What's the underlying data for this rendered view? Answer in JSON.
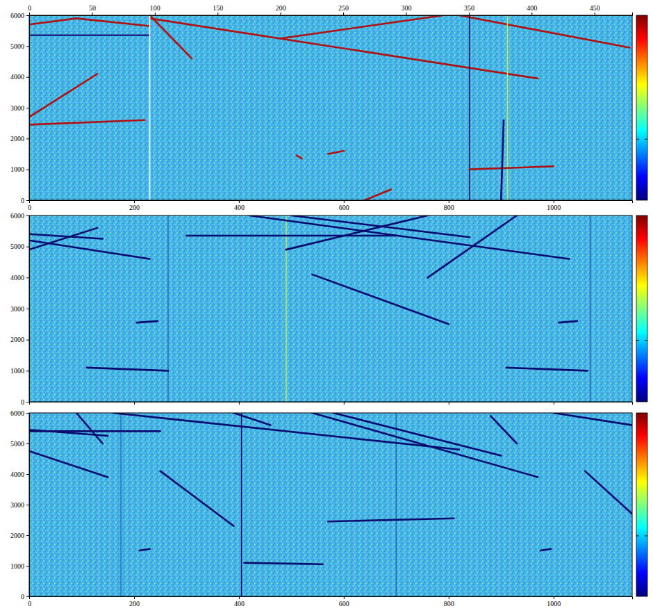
{
  "chart_data": [
    {
      "type": "line",
      "color": "#45b4e6",
      "xlim": [
        0,
        1150
      ],
      "xticks": [
        0,
        200,
        400,
        600,
        800,
        1000
      ],
      "x2lim": [
        0,
        480
      ],
      "x2ticks": [
        0,
        50,
        100,
        150,
        200,
        250,
        300,
        350,
        400,
        450
      ],
      "ylim": [
        0,
        6000
      ],
      "yticks": [
        0,
        1000,
        2000,
        3000,
        4000,
        5000,
        6000
      ],
      "colorbar": {
        "range": [
          0,
          1
        ],
        "ticks": [
          0.33
        ],
        "colors": [
          "#00007f",
          "#0000ff",
          "#007fff",
          "#00ffff",
          "#7fff7f",
          "#ffff00",
          "#ff7f00",
          "#ff0000",
          "#7f0000"
        ]
      },
      "series": [
        {
          "color": "#b01010",
          "x": [
            0,
            90,
            230
          ],
          "values": [
            5700,
            5900,
            5650
          ]
        },
        {
          "color": "#202080",
          "x": [
            0,
            230
          ],
          "values": [
            5350,
            5350
          ]
        },
        {
          "color": "#b01010",
          "x": [
            0,
            130
          ],
          "values": [
            2700,
            4100
          ]
        },
        {
          "color": "#b01010",
          "x": [
            0,
            220
          ],
          "values": [
            2450,
            2600
          ]
        },
        {
          "color": "#b01010",
          "x": [
            230,
            970
          ],
          "values": [
            5900,
            3950
          ]
        },
        {
          "color": "#b01010",
          "x": [
            230,
            310
          ],
          "values": [
            6000,
            4600
          ]
        },
        {
          "color": "#b01010",
          "x": [
            480,
            790
          ],
          "values": [
            5250,
            6000
          ]
        },
        {
          "color": "#b01010",
          "x": [
            820,
            1145
          ],
          "values": [
            6000,
            4950
          ]
        },
        {
          "color": "#ffffff",
          "x": [
            230,
            230
          ],
          "values": [
            0,
            6000
          ]
        },
        {
          "color": "#c8e85a",
          "x": [
            912,
            912
          ],
          "values": [
            0,
            6000
          ]
        },
        {
          "color": "#10106e",
          "x": [
            840,
            840
          ],
          "values": [
            0,
            6000
          ]
        },
        {
          "color": "#b01010",
          "x": [
            840,
            1000
          ],
          "values": [
            1000,
            1100
          ]
        },
        {
          "color": "#0a0a70",
          "x": [
            900,
            905
          ],
          "values": [
            0,
            2600
          ]
        },
        {
          "color": "#b01010",
          "x": [
            640,
            690
          ],
          "values": [
            0,
            350
          ]
        },
        {
          "color": "#b01010",
          "x": [
            570,
            600
          ],
          "values": [
            1500,
            1600
          ]
        },
        {
          "color": "#b01010",
          "x": [
            510,
            520
          ],
          "values": [
            1450,
            1350
          ]
        }
      ]
    },
    {
      "type": "line",
      "color": "#45b4e6",
      "tick_labels": "y",
      "xlim": [
        0,
        1150
      ],
      "xticks": [
        0,
        200,
        400,
        600,
        800,
        1000
      ],
      "ylim": [
        0,
        6000
      ],
      "yticks": [
        0,
        1000,
        2000,
        3000,
        4000,
        5000,
        6000
      ],
      "colorbar": {
        "range": [
          0,
          1
        ],
        "ticks": [
          0.33
        ],
        "colors": [
          "#00007f",
          "#0000ff",
          "#007fff",
          "#00ffff",
          "#7fff7f",
          "#ffff00",
          "#ff7f00",
          "#ff0000",
          "#7f0000"
        ]
      },
      "series": [
        {
          "color": "#2a6fc0",
          "x": [
            265,
            265
          ],
          "values": [
            0,
            6000
          ]
        },
        {
          "color": "#2a6fc0",
          "x": [
            1070,
            1070
          ],
          "values": [
            0,
            6000
          ]
        },
        {
          "color": "#c8e85a",
          "x": [
            490,
            490
          ],
          "values": [
            0,
            6000
          ]
        },
        {
          "color": "#0a0a70",
          "x": [
            0,
            140
          ],
          "values": [
            5400,
            5250
          ]
        },
        {
          "color": "#0a0a70",
          "x": [
            0,
            230
          ],
          "values": [
            5200,
            4600
          ]
        },
        {
          "color": "#0a0a70",
          "x": [
            0,
            130
          ],
          "values": [
            4900,
            5600
          ]
        },
        {
          "color": "#0a0a70",
          "x": [
            300,
            700
          ],
          "values": [
            5350,
            5350
          ]
        },
        {
          "color": "#0a0a70",
          "x": [
            420,
            1030
          ],
          "values": [
            6000,
            4600
          ]
        },
        {
          "color": "#0a0a70",
          "x": [
            500,
            840
          ],
          "values": [
            6000,
            5300
          ]
        },
        {
          "color": "#0a0a70",
          "x": [
            490,
            760
          ],
          "values": [
            4900,
            6000
          ]
        },
        {
          "color": "#0a0a70",
          "x": [
            760,
            930
          ],
          "values": [
            4000,
            6000
          ]
        },
        {
          "color": "#0a0a70",
          "x": [
            540,
            800
          ],
          "values": [
            4100,
            2500
          ]
        },
        {
          "color": "#0a0a70",
          "x": [
            205,
            245
          ],
          "values": [
            2550,
            2600
          ]
        },
        {
          "color": "#0a0a70",
          "x": [
            1010,
            1045
          ],
          "values": [
            2550,
            2600
          ]
        },
        {
          "color": "#0a0a70",
          "x": [
            110,
            265
          ],
          "values": [
            1100,
            1000
          ]
        },
        {
          "color": "#0a0a70",
          "x": [
            910,
            1065
          ],
          "values": [
            1100,
            1000
          ]
        }
      ]
    },
    {
      "type": "line",
      "color": "#45b4e6",
      "xlim": [
        0,
        1150
      ],
      "xticks": [
        0,
        200,
        400,
        600,
        800,
        1000
      ],
      "ylim": [
        0,
        6000
      ],
      "yticks": [
        0,
        1000,
        2000,
        3000,
        4000,
        5000,
        6000
      ],
      "colorbar": {
        "range": [
          0,
          1
        ],
        "ticks": [
          0.33
        ],
        "colors": [
          "#00007f",
          "#0000ff",
          "#007fff",
          "#00ffff",
          "#7fff7f",
          "#ffff00",
          "#ff7f00",
          "#ff0000",
          "#7f0000"
        ]
      },
      "series": [
        {
          "color": "#2a6fc0",
          "x": [
            175,
            175
          ],
          "values": [
            0,
            6000
          ]
        },
        {
          "color": "#2a6fc0",
          "x": [
            700,
            700
          ],
          "values": [
            0,
            6000
          ]
        },
        {
          "color": "#0a0a70",
          "x": [
            405,
            405
          ],
          "values": [
            0,
            6000
          ]
        },
        {
          "color": "#0a0a70",
          "x": [
            0,
            150
          ],
          "values": [
            5450,
            5250
          ]
        },
        {
          "color": "#0a0a70",
          "x": [
            0,
            250
          ],
          "values": [
            5400,
            5400
          ]
        },
        {
          "color": "#0a0a70",
          "x": [
            0,
            150
          ],
          "values": [
            4750,
            3900
          ]
        },
        {
          "color": "#0a0a70",
          "x": [
            90,
            140
          ],
          "values": [
            6000,
            5000
          ]
        },
        {
          "color": "#0a0a70",
          "x": [
            160,
            820
          ],
          "values": [
            6000,
            4800
          ]
        },
        {
          "color": "#0a0a70",
          "x": [
            250,
            390
          ],
          "values": [
            4100,
            2300
          ]
        },
        {
          "color": "#0a0a70",
          "x": [
            390,
            460
          ],
          "values": [
            6000,
            5600
          ]
        },
        {
          "color": "#0a0a70",
          "x": [
            540,
            970
          ],
          "values": [
            6000,
            3900
          ]
        },
        {
          "color": "#0a0a70",
          "x": [
            580,
            900
          ],
          "values": [
            6000,
            4600
          ]
        },
        {
          "color": "#0a0a70",
          "x": [
            880,
            930
          ],
          "values": [
            5900,
            5000
          ]
        },
        {
          "color": "#0a0a70",
          "x": [
            1000,
            1150
          ],
          "values": [
            6000,
            5600
          ]
        },
        {
          "color": "#0a0a70",
          "x": [
            1060,
            1150
          ],
          "values": [
            4100,
            2700
          ]
        },
        {
          "color": "#0a0a70",
          "x": [
            570,
            810
          ],
          "values": [
            2450,
            2550
          ]
        },
        {
          "color": "#0a0a70",
          "x": [
            410,
            560
          ],
          "values": [
            1100,
            1050
          ]
        },
        {
          "color": "#0a0a70",
          "x": [
            210,
            230
          ],
          "values": [
            1500,
            1550
          ]
        },
        {
          "color": "#0a0a70",
          "x": [
            975,
            995
          ],
          "values": [
            1500,
            1550
          ]
        }
      ]
    }
  ]
}
